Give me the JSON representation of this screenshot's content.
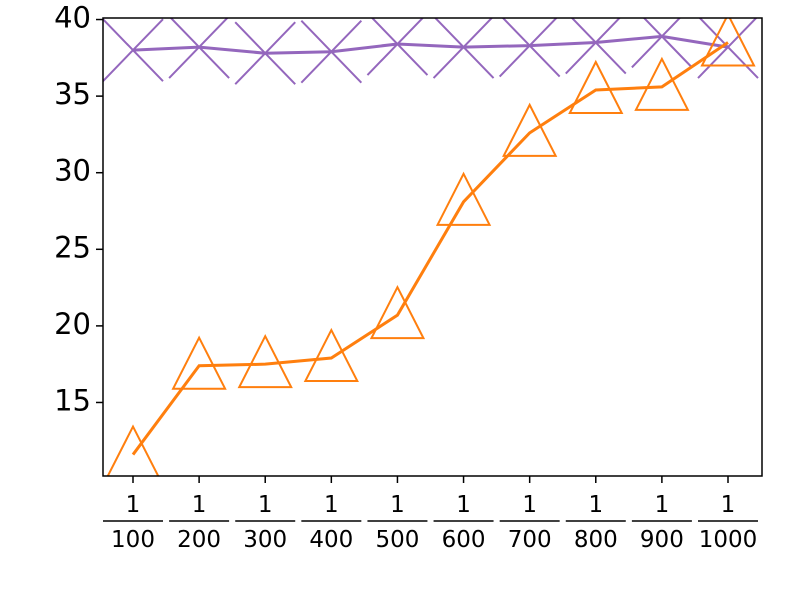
{
  "chart_data": {
    "type": "line",
    "categories": [
      {
        "numerator": "1",
        "denominator": "100"
      },
      {
        "numerator": "1",
        "denominator": "200"
      },
      {
        "numerator": "1",
        "denominator": "300"
      },
      {
        "numerator": "1",
        "denominator": "400"
      },
      {
        "numerator": "1",
        "denominator": "500"
      },
      {
        "numerator": "1",
        "denominator": "600"
      },
      {
        "numerator": "1",
        "denominator": "700"
      },
      {
        "numerator": "1",
        "denominator": "800"
      },
      {
        "numerator": "1",
        "denominator": "900"
      },
      {
        "numerator": "1",
        "denominator": "1000"
      }
    ],
    "series": [
      {
        "color": "#9467bd",
        "marker": "x",
        "values": [
          38.0,
          38.2,
          37.8,
          37.9,
          38.4,
          38.2,
          38.3,
          38.5,
          38.9,
          38.2
        ]
      },
      {
        "color": "#ff7f0e",
        "marker": "triangle",
        "values": [
          11.6,
          17.4,
          17.5,
          17.9,
          20.7,
          28.1,
          32.6,
          35.4,
          35.6,
          38.5
        ]
      }
    ],
    "ylim": [
      10.2,
      40.1
    ],
    "yticks": [
      15,
      20,
      25,
      30,
      35,
      40
    ],
    "grid": false
  }
}
